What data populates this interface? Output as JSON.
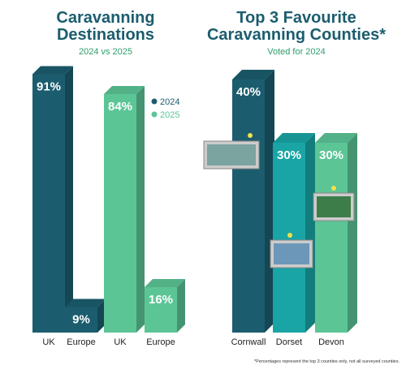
{
  "chart_data": [
    {
      "type": "bar",
      "title": "Caravanning Destinations",
      "subtitle": "2024 vs 2025",
      "categories": [
        "UK",
        "Europe"
      ],
      "series": [
        {
          "name": "2024",
          "color": "#1b5d6e",
          "values": [
            91,
            9
          ],
          "value_labels": [
            "91%",
            "9%"
          ]
        },
        {
          "name": "2025",
          "color": "#5cc596",
          "values": [
            84,
            16
          ],
          "value_labels": [
            "84%",
            "16%"
          ]
        }
      ]
    },
    {
      "type": "bar",
      "title": "Top 3 Favourite Caravanning Counties*",
      "subtitle": "Voted for 2024",
      "categories": [
        "Cornwall",
        "Dorset",
        "Devon"
      ],
      "values": [
        40,
        30,
        30
      ],
      "value_labels": [
        "40%",
        "30%",
        "30%"
      ],
      "colors": [
        "#1b5d6e",
        "#19a5a6",
        "#5cc596"
      ],
      "footnote": "*Percentages represent the top 3 counties only, not all surveyed counties."
    }
  ]
}
